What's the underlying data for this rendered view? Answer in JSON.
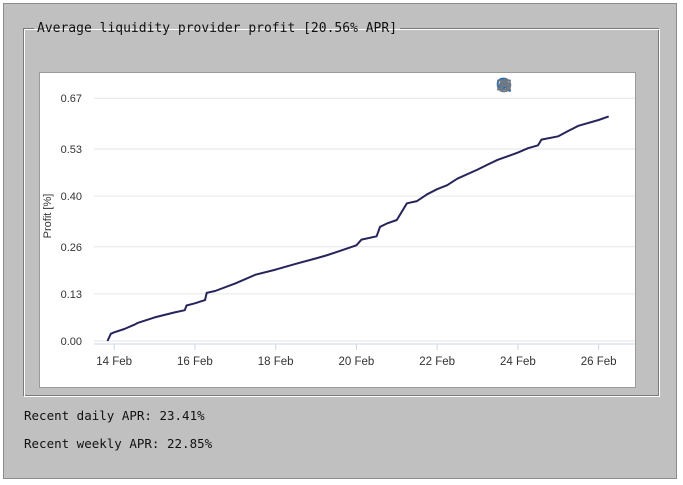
{
  "panel": {
    "legend": "Average liquidity provider profit [20.56% APR]"
  },
  "stats": {
    "daily_label": "Recent daily APR:",
    "daily_value": "23.41%",
    "weekly_label": "Recent weekly APR:",
    "weekly_value": "22.85%"
  },
  "toolbar": {
    "icons": [
      "zoom-in-icon",
      "zoom-out-icon",
      "zoom-select-icon",
      "pan-hand-icon",
      "home-reset-icon",
      "menu-icon"
    ]
  },
  "colors": {
    "line": "#25245b",
    "grid": "#e6e6e6",
    "text": "#333333",
    "icon": "#6d7a86",
    "icon_active": "#1e6dba"
  },
  "chart_data": {
    "type": "line",
    "title": "",
    "xlabel": "",
    "ylabel": "Profit [%]",
    "xlim": [
      "2024-02-13T12:00",
      "2024-02-27T00:00"
    ],
    "ylim": [
      0,
      0.69
    ],
    "x_ticks": [
      "2024-02-14",
      "2024-02-16",
      "2024-02-18",
      "2024-02-20",
      "2024-02-22",
      "2024-02-24",
      "2024-02-26"
    ],
    "x_tick_labels": [
      "14 Feb",
      "16 Feb",
      "18 Feb",
      "20 Feb",
      "22 Feb",
      "24 Feb",
      "26 Feb"
    ],
    "y_ticks": [
      0,
      0.13,
      0.26,
      0.4,
      0.53,
      0.67
    ],
    "y_tick_labels": [
      "0.00",
      "0.13",
      "0.26",
      "0.40",
      "0.53",
      "0.67"
    ],
    "grid": true,
    "series": [
      {
        "x": [
          "2024-02-13T20:00",
          "2024-02-13T22:00",
          "2024-02-14T00:00",
          "2024-02-14T06:00",
          "2024-02-14T12:00",
          "2024-02-14T14:00",
          "2024-02-15T00:00",
          "2024-02-15T12:00",
          "2024-02-15T18:00",
          "2024-02-15T19:00",
          "2024-02-16T00:00",
          "2024-02-16T06:00",
          "2024-02-16T07:00",
          "2024-02-16T12:00",
          "2024-02-17T00:00",
          "2024-02-17T12:00",
          "2024-02-18T00:00",
          "2024-02-18T12:00",
          "2024-02-19T00:00",
          "2024-02-19T06:00",
          "2024-02-19T12:00",
          "2024-02-20T00:00",
          "2024-02-20T03:00",
          "2024-02-20T12:00",
          "2024-02-20T14:00",
          "2024-02-20T18:00",
          "2024-02-21T00:00",
          "2024-02-21T06:00",
          "2024-02-21T12:00",
          "2024-02-21T18:00",
          "2024-02-22T00:00",
          "2024-02-22T06:00",
          "2024-02-22T12:00",
          "2024-02-23T00:00",
          "2024-02-23T06:00",
          "2024-02-23T12:00",
          "2024-02-24T00:00",
          "2024-02-24T06:00",
          "2024-02-24T12:00",
          "2024-02-24T14:00",
          "2024-02-25T00:00",
          "2024-02-25T06:00",
          "2024-02-25T12:00",
          "2024-02-26T00:00",
          "2024-02-26T06:00"
        ],
        "y": [
          0.0,
          0.02,
          0.024,
          0.033,
          0.045,
          0.05,
          0.065,
          0.079,
          0.085,
          0.098,
          0.104,
          0.113,
          0.133,
          0.138,
          0.159,
          0.183,
          0.197,
          0.213,
          0.228,
          0.236,
          0.245,
          0.264,
          0.28,
          0.289,
          0.315,
          0.324,
          0.334,
          0.38,
          0.386,
          0.405,
          0.419,
          0.43,
          0.448,
          0.473,
          0.487,
          0.5,
          0.52,
          0.532,
          0.54,
          0.556,
          0.565,
          0.58,
          0.594,
          0.61,
          0.62
        ]
      }
    ]
  }
}
